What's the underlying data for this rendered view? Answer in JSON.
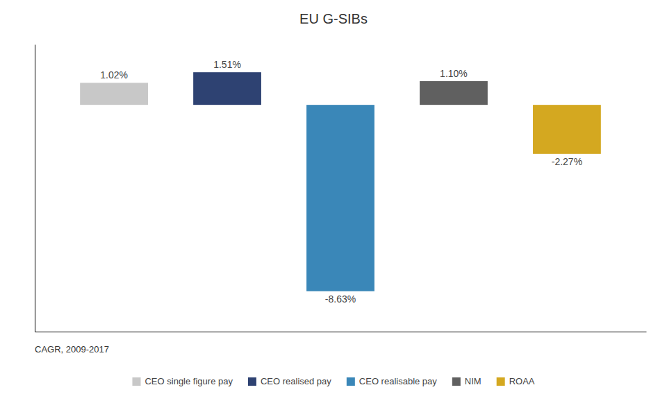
{
  "chart_data": {
    "type": "bar",
    "title": "EU G-SIBs",
    "categories": [
      "CEO single figure pay",
      "CEO realised pay",
      "CEO realisable pay",
      "NIM",
      "ROAA"
    ],
    "values": [
      1.02,
      1.51,
      -8.63,
      1.1,
      -2.27
    ],
    "value_labels": [
      "1.02%",
      "1.51%",
      "-8.63%",
      "1.10%",
      "-2.27%"
    ],
    "colors": [
      "#c8c8c8",
      "#2e4272",
      "#3a87b8",
      "#606060",
      "#d4a820"
    ],
    "xlabel": "CAGR, 2009-2017",
    "ylim": [
      -10.5,
      2.8
    ],
    "data_labels": true,
    "tick_labels": false,
    "grid": false,
    "legend": "bottom"
  }
}
